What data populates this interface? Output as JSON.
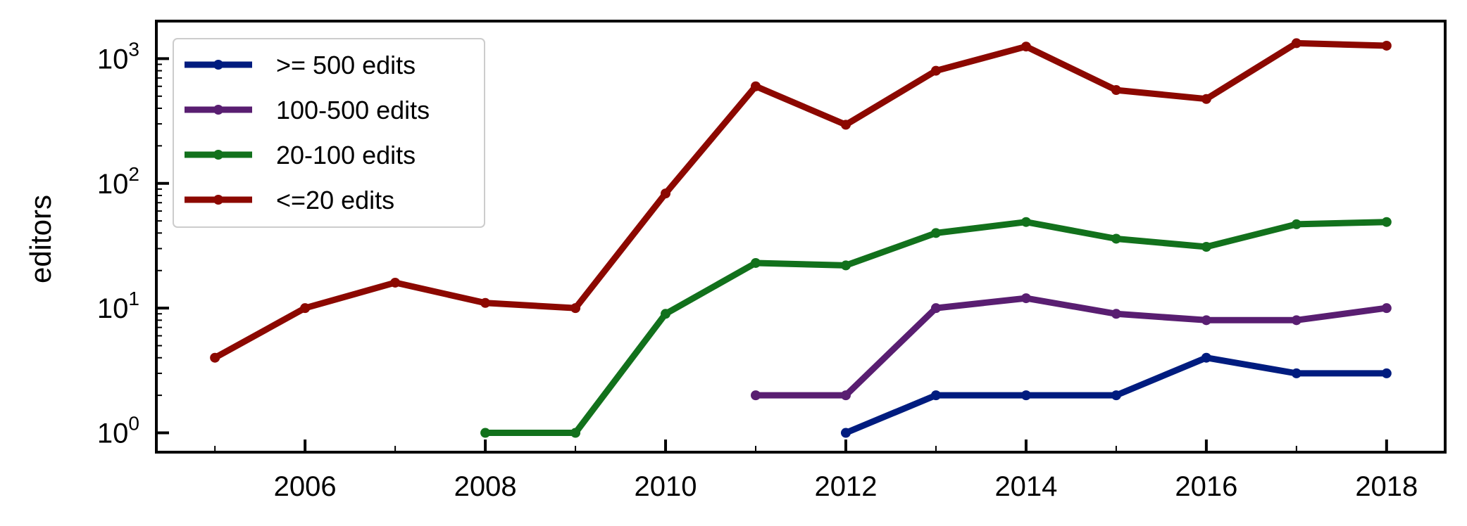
{
  "chart_data": {
    "type": "line",
    "ylabel": "editors",
    "xlabel": "",
    "title": "",
    "yscale": "log",
    "xlim": [
      2004.35,
      2018.65
    ],
    "ylim": [
      0.7,
      2000
    ],
    "x_ticks": [
      2006,
      2008,
      2010,
      2012,
      2014,
      2016,
      2018
    ],
    "x_tick_labels": [
      "2006",
      "2008",
      "2010",
      "2012",
      "2014",
      "2016",
      "2018"
    ],
    "x_minor_ticks": [
      2005,
      2007,
      2009,
      2011,
      2013,
      2015,
      2017
    ],
    "y_ticks": [
      {
        "value": 1,
        "base": "10",
        "exp": "0"
      },
      {
        "value": 10,
        "base": "10",
        "exp": "1"
      },
      {
        "value": 100,
        "base": "10",
        "exp": "2"
      },
      {
        "value": 1000,
        "base": "10",
        "exp": "3"
      }
    ],
    "grid": false,
    "legend_position": "top-left",
    "series": [
      {
        "name": ">= 500 edits",
        "color": "#001c7f",
        "x": [
          2012,
          2013,
          2014,
          2015,
          2016,
          2017,
          2018
        ],
        "y": [
          1,
          2,
          2,
          2,
          4,
          3,
          3
        ]
      },
      {
        "name": "100-500 edits",
        "color": "#591e71",
        "x": [
          2011,
          2012,
          2013,
          2014,
          2015,
          2016,
          2017,
          2018
        ],
        "y": [
          2,
          2,
          10,
          12,
          9,
          8,
          8,
          10
        ]
      },
      {
        "name": "20-100 edits",
        "color": "#12711c",
        "x": [
          2008,
          2009,
          2010,
          2011,
          2012,
          2013,
          2014,
          2015,
          2016,
          2017,
          2018
        ],
        "y": [
          1,
          1,
          9,
          23,
          22,
          40,
          49,
          36,
          31,
          47,
          49
        ]
      },
      {
        "name": "<=20 edits",
        "color": "#8c0800",
        "x": [
          2005,
          2006,
          2007,
          2008,
          2009,
          2010,
          2011,
          2012,
          2013,
          2014,
          2015,
          2016,
          2017,
          2018
        ],
        "y": [
          4,
          10,
          16,
          11,
          10,
          83,
          600,
          295,
          800,
          1250,
          560,
          475,
          1330,
          1270
        ]
      }
    ]
  }
}
